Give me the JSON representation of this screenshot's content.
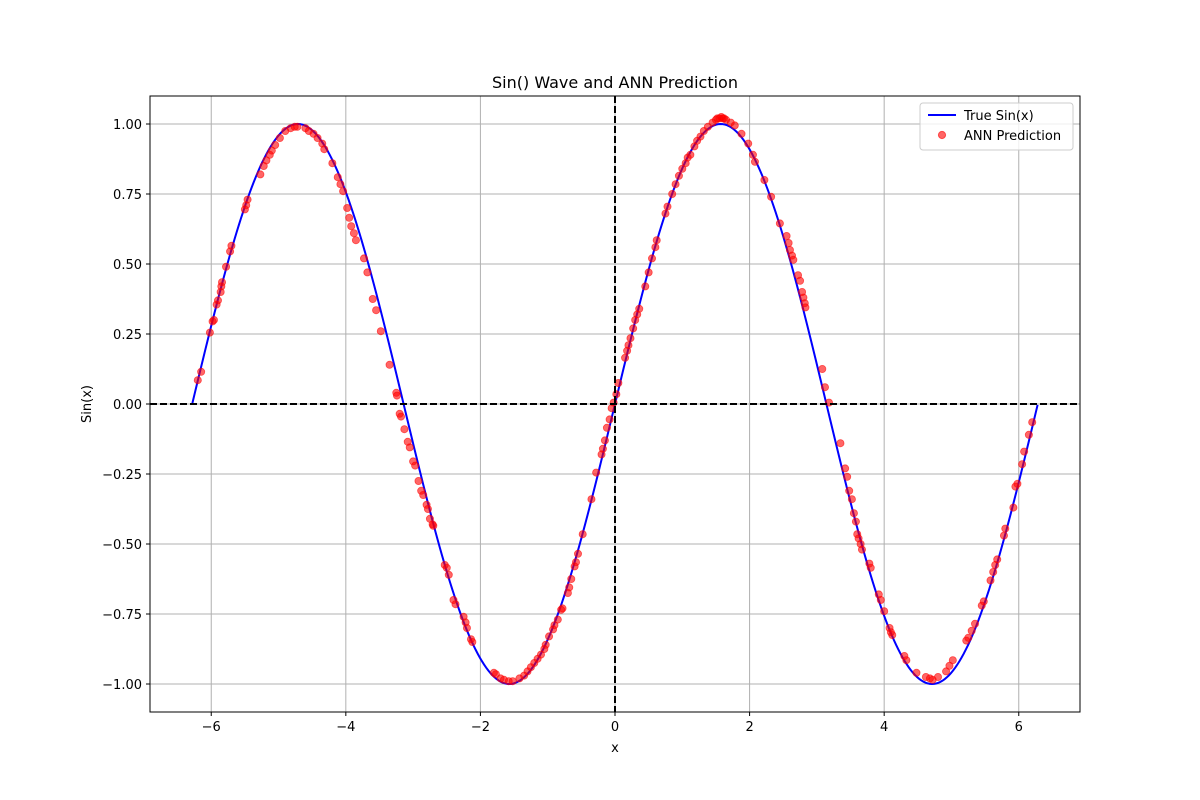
{
  "chart_data": {
    "type": "scatter",
    "title": "Sin() Wave and ANN Prediction",
    "xlabel": "x",
    "ylabel": "Sin(x)",
    "xlim": [
      -6.91,
      6.91
    ],
    "ylim": [
      -1.1,
      1.1
    ],
    "x_ticks": [
      -6,
      -4,
      -2,
      0,
      2,
      4,
      6
    ],
    "x_tick_labels": [
      "−6",
      "−4",
      "−2",
      "0",
      "2",
      "4",
      "6"
    ],
    "y_ticks": [
      -1.0,
      -0.75,
      -0.5,
      -0.25,
      0.0,
      0.25,
      0.5,
      0.75,
      1.0
    ],
    "y_tick_labels": [
      "−1.00",
      "−0.75",
      "−0.50",
      "−0.25",
      "0.00",
      "0.25",
      "0.50",
      "0.75",
      "1.00"
    ],
    "grid": true,
    "legend": {
      "placement": "top-right"
    },
    "reference_lines": [
      {
        "orientation": "horizontal",
        "value": 0,
        "style": "dashed",
        "color": "#000000"
      },
      {
        "orientation": "vertical",
        "value": 0,
        "style": "dashed",
        "color": "#000000"
      }
    ],
    "series": [
      {
        "name": "True Sin(x)",
        "type": "line",
        "color": "#0000ff",
        "function": "sin(x)",
        "x_range": [
          -6.28,
          6.28
        ]
      },
      {
        "name": "ANN Prediction",
        "type": "scatter",
        "color": "#ff0000",
        "points": [
          [
            -6.2,
            0.085
          ],
          [
            -6.15,
            0.115
          ],
          [
            -6.02,
            0.255
          ],
          [
            -5.98,
            0.295
          ],
          [
            -5.96,
            0.3
          ],
          [
            -5.92,
            0.355
          ],
          [
            -5.9,
            0.37
          ],
          [
            -5.86,
            0.4
          ],
          [
            -5.85,
            0.42
          ],
          [
            -5.84,
            0.435
          ],
          [
            -5.78,
            0.49
          ],
          [
            -5.72,
            0.545
          ],
          [
            -5.7,
            0.565
          ],
          [
            -5.5,
            0.695
          ],
          [
            -5.48,
            0.71
          ],
          [
            -5.46,
            0.73
          ],
          [
            -5.27,
            0.82
          ],
          [
            -5.22,
            0.85
          ],
          [
            -5.18,
            0.87
          ],
          [
            -5.13,
            0.89
          ],
          [
            -5.1,
            0.905
          ],
          [
            -5.05,
            0.925
          ],
          [
            -4.98,
            0.95
          ],
          [
            -4.9,
            0.975
          ],
          [
            -4.82,
            0.985
          ],
          [
            -4.76,
            0.99
          ],
          [
            -4.72,
            0.99
          ],
          [
            -4.6,
            0.985
          ],
          [
            -4.55,
            0.975
          ],
          [
            -4.48,
            0.965
          ],
          [
            -4.42,
            0.95
          ],
          [
            -4.35,
            0.93
          ],
          [
            -4.32,
            0.91
          ],
          [
            -4.2,
            0.86
          ],
          [
            -4.12,
            0.81
          ],
          [
            -4.08,
            0.785
          ],
          [
            -4.04,
            0.76
          ],
          [
            -3.98,
            0.7
          ],
          [
            -3.95,
            0.665
          ],
          [
            -3.92,
            0.635
          ],
          [
            -3.88,
            0.61
          ],
          [
            -3.85,
            0.585
          ],
          [
            -3.73,
            0.52
          ],
          [
            -3.68,
            0.47
          ],
          [
            -3.6,
            0.375
          ],
          [
            -3.55,
            0.335
          ],
          [
            -3.48,
            0.26
          ],
          [
            -3.35,
            0.14
          ],
          [
            -3.25,
            0.04
          ],
          [
            -3.24,
            0.03
          ],
          [
            -3.2,
            -0.035
          ],
          [
            -3.18,
            -0.045
          ],
          [
            -3.13,
            -0.09
          ],
          [
            -3.08,
            -0.135
          ],
          [
            -3.05,
            -0.155
          ],
          [
            -3.0,
            -0.205
          ],
          [
            -2.97,
            -0.22
          ],
          [
            -2.92,
            -0.275
          ],
          [
            -2.88,
            -0.31
          ],
          [
            -2.85,
            -0.325
          ],
          [
            -2.8,
            -0.36
          ],
          [
            -2.78,
            -0.375
          ],
          [
            -2.75,
            -0.41
          ],
          [
            -2.71,
            -0.43
          ],
          [
            -2.7,
            -0.435
          ],
          [
            -2.53,
            -0.575
          ],
          [
            -2.5,
            -0.585
          ],
          [
            -2.47,
            -0.61
          ],
          [
            -2.4,
            -0.7
          ],
          [
            -2.37,
            -0.715
          ],
          [
            -2.25,
            -0.76
          ],
          [
            -2.22,
            -0.78
          ],
          [
            -2.2,
            -0.8
          ],
          [
            -2.14,
            -0.84
          ],
          [
            -2.12,
            -0.85
          ],
          [
            -1.8,
            -0.96
          ],
          [
            -1.77,
            -0.965
          ],
          [
            -1.7,
            -0.98
          ],
          [
            -1.65,
            -0.985
          ],
          [
            -1.58,
            -0.99
          ],
          [
            -1.52,
            -0.99
          ],
          [
            -1.42,
            -0.98
          ],
          [
            -1.35,
            -0.97
          ],
          [
            -1.3,
            -0.955
          ],
          [
            -1.25,
            -0.94
          ],
          [
            -1.2,
            -0.925
          ],
          [
            -1.15,
            -0.91
          ],
          [
            -1.1,
            -0.895
          ],
          [
            -1.05,
            -0.875
          ],
          [
            -1.03,
            -0.86
          ],
          [
            -0.98,
            -0.83
          ],
          [
            -0.92,
            -0.805
          ],
          [
            -0.9,
            -0.79
          ],
          [
            -0.85,
            -0.77
          ],
          [
            -0.8,
            -0.735
          ],
          [
            -0.78,
            -0.73
          ],
          [
            -0.7,
            -0.675
          ],
          [
            -0.68,
            -0.655
          ],
          [
            -0.65,
            -0.625
          ],
          [
            -0.6,
            -0.58
          ],
          [
            -0.58,
            -0.565
          ],
          [
            -0.55,
            -0.535
          ],
          [
            -0.48,
            -0.465
          ],
          [
            -0.35,
            -0.34
          ],
          [
            -0.28,
            -0.245
          ],
          [
            -0.2,
            -0.18
          ],
          [
            -0.18,
            -0.16
          ],
          [
            -0.15,
            -0.13
          ],
          [
            -0.12,
            -0.085
          ],
          [
            -0.08,
            -0.055
          ],
          [
            -0.05,
            -0.015
          ],
          [
            -0.02,
            0.005
          ],
          [
            0.02,
            0.035
          ],
          [
            0.05,
            0.075
          ],
          [
            0.15,
            0.165
          ],
          [
            0.18,
            0.19
          ],
          [
            0.2,
            0.21
          ],
          [
            0.23,
            0.235
          ],
          [
            0.27,
            0.27
          ],
          [
            0.3,
            0.3
          ],
          [
            0.33,
            0.32
          ],
          [
            0.36,
            0.34
          ],
          [
            0.45,
            0.42
          ],
          [
            0.5,
            0.47
          ],
          [
            0.55,
            0.52
          ],
          [
            0.6,
            0.56
          ],
          [
            0.62,
            0.585
          ],
          [
            0.75,
            0.68
          ],
          [
            0.78,
            0.705
          ],
          [
            0.85,
            0.75
          ],
          [
            0.9,
            0.785
          ],
          [
            0.95,
            0.815
          ],
          [
            1.0,
            0.84
          ],
          [
            1.05,
            0.86
          ],
          [
            1.08,
            0.88
          ],
          [
            1.12,
            0.89
          ],
          [
            1.18,
            0.92
          ],
          [
            1.22,
            0.94
          ],
          [
            1.27,
            0.955
          ],
          [
            1.32,
            0.975
          ],
          [
            1.38,
            0.99
          ],
          [
            1.45,
            1.005
          ],
          [
            1.5,
            1.015
          ],
          [
            1.52,
            1.02
          ],
          [
            1.55,
            1.02
          ],
          [
            1.58,
            1.025
          ],
          [
            1.6,
            1.02
          ],
          [
            1.62,
            1.02
          ],
          [
            1.65,
            1.015
          ],
          [
            1.72,
            1.005
          ],
          [
            1.78,
            0.995
          ],
          [
            1.88,
            0.965
          ],
          [
            1.98,
            0.93
          ],
          [
            2.05,
            0.89
          ],
          [
            2.08,
            0.865
          ],
          [
            2.22,
            0.8
          ],
          [
            2.32,
            0.74
          ],
          [
            2.45,
            0.645
          ],
          [
            2.55,
            0.6
          ],
          [
            2.58,
            0.575
          ],
          [
            2.6,
            0.55
          ],
          [
            2.63,
            0.53
          ],
          [
            2.65,
            0.515
          ],
          [
            2.72,
            0.46
          ],
          [
            2.75,
            0.44
          ],
          [
            2.78,
            0.4
          ],
          [
            2.8,
            0.38
          ],
          [
            2.82,
            0.36
          ],
          [
            2.83,
            0.345
          ],
          [
            3.08,
            0.125
          ],
          [
            3.12,
            0.06
          ],
          [
            3.18,
            0.005
          ],
          [
            3.35,
            -0.14
          ],
          [
            3.42,
            -0.23
          ],
          [
            3.45,
            -0.26
          ],
          [
            3.48,
            -0.31
          ],
          [
            3.52,
            -0.34
          ],
          [
            3.55,
            -0.39
          ],
          [
            3.58,
            -0.42
          ],
          [
            3.6,
            -0.465
          ],
          [
            3.62,
            -0.48
          ],
          [
            3.65,
            -0.5
          ],
          [
            3.67,
            -0.52
          ],
          [
            3.78,
            -0.57
          ],
          [
            3.8,
            -0.585
          ],
          [
            3.92,
            -0.68
          ],
          [
            3.95,
            -0.7
          ],
          [
            4.0,
            -0.74
          ],
          [
            4.08,
            -0.8
          ],
          [
            4.1,
            -0.815
          ],
          [
            4.12,
            -0.825
          ],
          [
            4.3,
            -0.9
          ],
          [
            4.33,
            -0.915
          ],
          [
            4.48,
            -0.96
          ],
          [
            4.62,
            -0.975
          ],
          [
            4.68,
            -0.98
          ],
          [
            4.72,
            -0.985
          ],
          [
            4.8,
            -0.975
          ],
          [
            4.92,
            -0.955
          ],
          [
            4.97,
            -0.935
          ],
          [
            5.02,
            -0.915
          ],
          [
            5.22,
            -0.845
          ],
          [
            5.25,
            -0.835
          ],
          [
            5.3,
            -0.81
          ],
          [
            5.35,
            -0.785
          ],
          [
            5.45,
            -0.72
          ],
          [
            5.48,
            -0.705
          ],
          [
            5.58,
            -0.63
          ],
          [
            5.62,
            -0.6
          ],
          [
            5.65,
            -0.575
          ],
          [
            5.68,
            -0.555
          ],
          [
            5.78,
            -0.47
          ],
          [
            5.8,
            -0.445
          ],
          [
            5.92,
            -0.37
          ],
          [
            5.95,
            -0.295
          ],
          [
            5.98,
            -0.285
          ],
          [
            6.05,
            -0.215
          ],
          [
            6.08,
            -0.17
          ],
          [
            6.15,
            -0.11
          ],
          [
            6.2,
            -0.065
          ]
        ]
      }
    ]
  }
}
